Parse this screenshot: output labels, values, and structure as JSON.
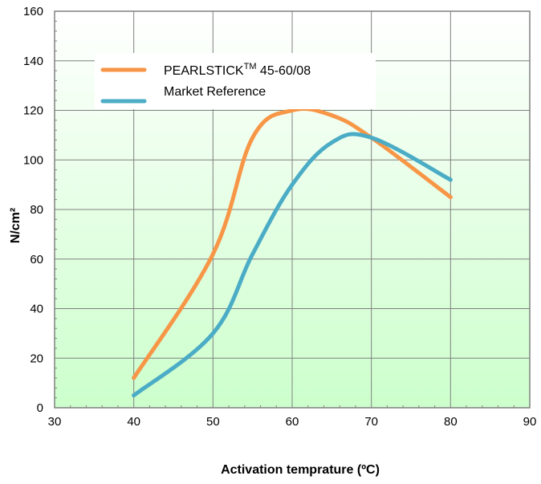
{
  "chart_data": {
    "type": "line",
    "title": "",
    "xlabel": "Activation temprature (ºC)",
    "ylabel": "N/cm²",
    "xlim": [
      30,
      90
    ],
    "ylim": [
      0,
      160
    ],
    "xticks": [
      30,
      40,
      50,
      60,
      70,
      80,
      90
    ],
    "yticks": [
      0,
      20,
      40,
      60,
      80,
      100,
      120,
      140,
      160
    ],
    "grid": true,
    "legend_position": "top-left",
    "series": [
      {
        "name": "PEARLSTICK™ 45-60/08",
        "legend_main": "PEARLSTICK",
        "legend_sup": "TM",
        "legend_rest": " 45-60/08",
        "color": "#F79646",
        "x": [
          40,
          50,
          55,
          60,
          65,
          70,
          80
        ],
        "y": [
          12,
          62,
          109,
          120,
          118,
          109,
          85
        ]
      },
      {
        "name": "Market Reference",
        "color": "#4BACC6",
        "x": [
          40,
          50,
          55,
          60,
          65,
          70,
          80
        ],
        "y": [
          5,
          30,
          62,
          90,
          107,
          109,
          92
        ]
      }
    ],
    "colors": {
      "plot_top": "#FFFFFF",
      "plot_bottom": "#CCFFCC",
      "grid": "#808080",
      "frame": "#808080"
    }
  }
}
